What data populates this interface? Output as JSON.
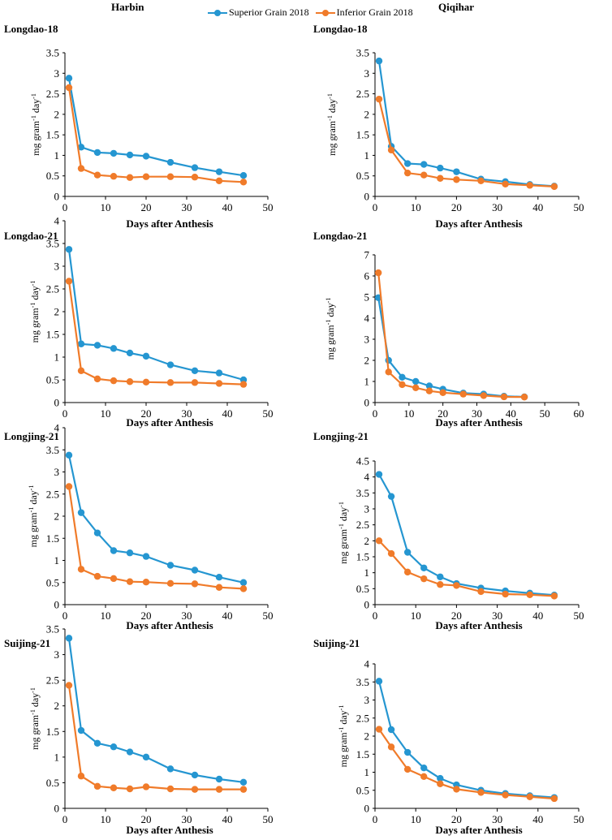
{
  "figure": {
    "column_titles": [
      "Harbin",
      "Qiqihar"
    ],
    "legend": [
      {
        "name": "Superior Grain 2018",
        "color": "#2596d1"
      },
      {
        "name": "Inferior Grain 2018",
        "color": "#f07b2a"
      }
    ]
  },
  "chart_data": [
    {
      "type": "line",
      "title": "Longdao-18",
      "location": "Harbin",
      "xlabel": "Days after Anthesis",
      "ylabel": "mg gram-1 day-1",
      "xlim": [
        0,
        50
      ],
      "xticks": [
        0,
        10,
        20,
        30,
        40,
        50
      ],
      "ylim": [
        0,
        3.5
      ],
      "yticks": [
        0,
        0.5,
        1,
        1.5,
        2,
        2.5,
        3,
        3.5
      ],
      "x": [
        1,
        4,
        8,
        12,
        16,
        20,
        26,
        32,
        38,
        44
      ],
      "series": [
        {
          "name": "Superior Grain 2018",
          "values": [
            2.88,
            1.2,
            1.07,
            1.05,
            1.01,
            0.98,
            0.83,
            0.7,
            0.6,
            0.51
          ]
        },
        {
          "name": "Inferior Grain 2018",
          "values": [
            2.65,
            0.68,
            0.52,
            0.49,
            0.46,
            0.48,
            0.48,
            0.47,
            0.38,
            0.35
          ]
        }
      ]
    },
    {
      "type": "line",
      "title": "Longdao-18",
      "location": "Qiqihar",
      "xlabel": "Days after Anthesis",
      "ylabel": "mg gram-1 day-1",
      "xlim": [
        0,
        50
      ],
      "xticks": [
        0,
        10,
        20,
        30,
        40,
        50
      ],
      "ylim": [
        0,
        3.5
      ],
      "yticks": [
        0,
        0.5,
        1,
        1.5,
        2,
        2.5,
        3,
        3.5
      ],
      "x": [
        1,
        4,
        8,
        12,
        16,
        20,
        26,
        32,
        38,
        44
      ],
      "series": [
        {
          "name": "Superior Grain 2018",
          "values": [
            3.3,
            1.22,
            0.8,
            0.78,
            0.69,
            0.6,
            0.42,
            0.36,
            0.29,
            0.25
          ]
        },
        {
          "name": "Inferior Grain 2018",
          "values": [
            2.37,
            1.13,
            0.57,
            0.52,
            0.44,
            0.41,
            0.38,
            0.3,
            0.27,
            0.24
          ]
        }
      ]
    },
    {
      "type": "line",
      "title": "Longdao-21",
      "location": "Harbin",
      "xlabel": "Days after Anthesis",
      "ylabel": "mg gram-1 day-1",
      "xlim": [
        0,
        50
      ],
      "xticks": [
        0,
        10,
        20,
        30,
        40,
        50
      ],
      "ylim": [
        0,
        4
      ],
      "yticks": [
        0,
        0.5,
        1,
        1.5,
        2,
        2.5,
        3,
        3.5,
        4
      ],
      "x": [
        1,
        4,
        8,
        12,
        16,
        20,
        26,
        32,
        38,
        44
      ],
      "series": [
        {
          "name": "Superior Grain 2018",
          "values": [
            3.37,
            1.29,
            1.26,
            1.19,
            1.09,
            1.02,
            0.83,
            0.7,
            0.65,
            0.5
          ]
        },
        {
          "name": "Inferior Grain 2018",
          "values": [
            2.67,
            0.7,
            0.52,
            0.48,
            0.46,
            0.45,
            0.44,
            0.44,
            0.42,
            0.4
          ]
        }
      ]
    },
    {
      "type": "line",
      "title": "Longdao-21",
      "location": "Qiqihar",
      "xlabel": "Days after Anthesis",
      "ylabel": "mg gram-1 day-1",
      "xlim": [
        0,
        60
      ],
      "xticks": [
        0,
        10,
        20,
        30,
        40,
        50,
        60
      ],
      "ylim": [
        0,
        7
      ],
      "yticks": [
        0,
        1,
        2,
        3,
        4,
        5,
        6,
        7
      ],
      "x": [
        1,
        4,
        8,
        12,
        16,
        20,
        26,
        32,
        38,
        44
      ],
      "series": [
        {
          "name": "Superior Grain 2018",
          "values": [
            4.97,
            2.0,
            1.2,
            1.0,
            0.79,
            0.63,
            0.45,
            0.4,
            0.3,
            0.27
          ]
        },
        {
          "name": "Inferior Grain 2018",
          "values": [
            6.15,
            1.45,
            0.85,
            0.7,
            0.55,
            0.47,
            0.4,
            0.33,
            0.27,
            0.26
          ]
        }
      ]
    },
    {
      "type": "line",
      "title": "Longjing-21",
      "location": "Harbin",
      "xlabel": "Days after Anthesis",
      "ylabel": "mg gram-1 day-1",
      "xlim": [
        0,
        50
      ],
      "xticks": [
        0,
        10,
        20,
        30,
        40,
        50
      ],
      "ylim": [
        0,
        4
      ],
      "yticks": [
        0,
        0.5,
        1,
        1.5,
        2,
        2.5,
        3,
        3.5,
        4
      ],
      "x": [
        1,
        4,
        8,
        12,
        16,
        20,
        26,
        32,
        38,
        44
      ],
      "series": [
        {
          "name": "Superior Grain 2018",
          "values": [
            3.38,
            2.08,
            1.62,
            1.22,
            1.17,
            1.09,
            0.89,
            0.78,
            0.62,
            0.5
          ]
        },
        {
          "name": "Inferior Grain 2018",
          "values": [
            2.67,
            0.8,
            0.64,
            0.59,
            0.52,
            0.51,
            0.48,
            0.47,
            0.39,
            0.36
          ]
        }
      ]
    },
    {
      "type": "line",
      "title": "Longjing-21",
      "location": "Qiqihar",
      "xlabel": "Days after Anthesis",
      "ylabel": "mg gram-1 day-1",
      "xlim": [
        0,
        50
      ],
      "xticks": [
        0,
        10,
        20,
        30,
        40,
        50
      ],
      "ylim": [
        0,
        4.5
      ],
      "yticks": [
        0,
        0.5,
        1,
        1.5,
        2,
        2.5,
        3,
        3.5,
        4,
        4.5
      ],
      "x": [
        1,
        4,
        8,
        12,
        16,
        20,
        26,
        32,
        38,
        44
      ],
      "series": [
        {
          "name": "Superior Grain 2018",
          "values": [
            4.08,
            3.39,
            1.64,
            1.15,
            0.87,
            0.66,
            0.52,
            0.43,
            0.36,
            0.3
          ]
        },
        {
          "name": "Inferior Grain 2018",
          "values": [
            2.0,
            1.6,
            1.02,
            0.81,
            0.63,
            0.6,
            0.41,
            0.33,
            0.31,
            0.27
          ]
        }
      ]
    },
    {
      "type": "line",
      "title": "Suijing-21",
      "location": "Harbin",
      "xlabel": "Days after Anthesis",
      "ylabel": "mg gram-1 day-1",
      "xlim": [
        0,
        50
      ],
      "xticks": [
        0,
        10,
        20,
        30,
        40,
        50
      ],
      "ylim": [
        0,
        3.5
      ],
      "yticks": [
        0,
        0.5,
        1,
        1.5,
        2,
        2.5,
        3,
        3.5
      ],
      "x": [
        1,
        4,
        8,
        12,
        16,
        20,
        26,
        32,
        38,
        44
      ],
      "series": [
        {
          "name": "Superior Grain 2018",
          "values": [
            3.32,
            1.52,
            1.27,
            1.2,
            1.1,
            1.0,
            0.77,
            0.65,
            0.57,
            0.51
          ]
        },
        {
          "name": "Inferior Grain 2018",
          "values": [
            2.4,
            0.63,
            0.43,
            0.4,
            0.38,
            0.42,
            0.38,
            0.37,
            0.37,
            0.37
          ]
        }
      ]
    },
    {
      "type": "line",
      "title": "Suijing-21",
      "location": "Qiqihar",
      "xlabel": "Days after Anthesis",
      "ylabel": "mg gram-1 day-1",
      "xlim": [
        0,
        50
      ],
      "xticks": [
        0,
        10,
        20,
        30,
        40,
        50
      ],
      "ylim": [
        0,
        4
      ],
      "yticks": [
        0,
        0.5,
        1,
        1.5,
        2,
        2.5,
        3,
        3.5,
        4
      ],
      "x": [
        1,
        4,
        8,
        12,
        16,
        20,
        26,
        32,
        38,
        44
      ],
      "series": [
        {
          "name": "Superior Grain 2018",
          "values": [
            3.52,
            2.18,
            1.55,
            1.12,
            0.83,
            0.65,
            0.5,
            0.41,
            0.35,
            0.3
          ]
        },
        {
          "name": "Inferior Grain 2018",
          "values": [
            2.19,
            1.7,
            1.08,
            0.88,
            0.68,
            0.53,
            0.44,
            0.37,
            0.32,
            0.27
          ]
        }
      ]
    }
  ]
}
